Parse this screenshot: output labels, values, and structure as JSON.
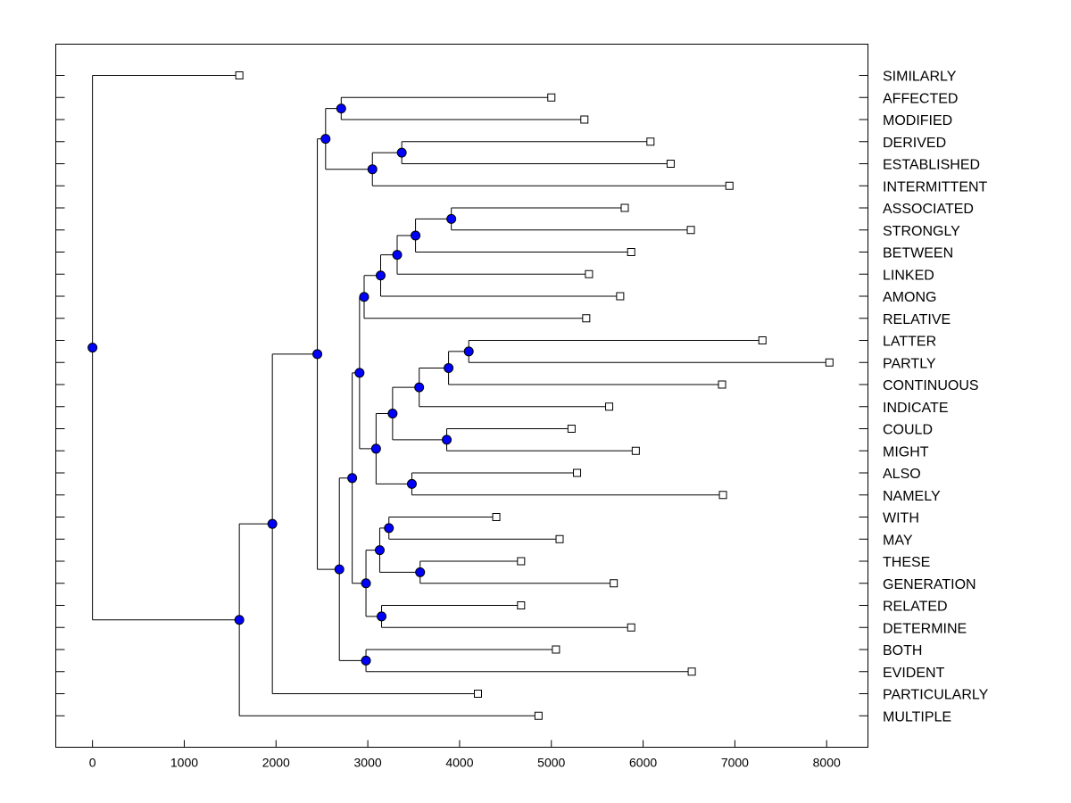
{
  "chart_data": {
    "type": "dendrogram",
    "title": "",
    "xlabel": "",
    "ylabel": "",
    "xlim": [
      -400,
      8450
    ],
    "xticks": [
      0,
      1000,
      2000,
      3000,
      4000,
      5000,
      6000,
      7000,
      8000
    ],
    "xtick_labels": [
      "0",
      "1000",
      "2000",
      "3000",
      "4000",
      "5000",
      "6000",
      "7000",
      "8000"
    ],
    "leaves": [
      {
        "label": "SIMILARLY",
        "value": 1600
      },
      {
        "label": "AFFECTED",
        "value": 5000
      },
      {
        "label": "MODIFIED",
        "value": 5360
      },
      {
        "label": "DERIVED",
        "value": 6080
      },
      {
        "label": "ESTABLISHED",
        "value": 6300
      },
      {
        "label": "INTERMITTENT",
        "value": 6940
      },
      {
        "label": "ASSOCIATED",
        "value": 5800
      },
      {
        "label": "STRONGLY",
        "value": 6520
      },
      {
        "label": "BETWEEN",
        "value": 5870
      },
      {
        "label": "LINKED",
        "value": 5410
      },
      {
        "label": "AMONG",
        "value": 5750
      },
      {
        "label": "RELATIVE",
        "value": 5380
      },
      {
        "label": "LATTER",
        "value": 7300
      },
      {
        "label": "PARTLY",
        "value": 8030
      },
      {
        "label": "CONTINUOUS",
        "value": 6860
      },
      {
        "label": "INDICATE",
        "value": 5630
      },
      {
        "label": "COULD",
        "value": 5220
      },
      {
        "label": "MIGHT",
        "value": 5920
      },
      {
        "label": "ALSO",
        "value": 5280
      },
      {
        "label": "NAMELY",
        "value": 6870
      },
      {
        "label": "WITH",
        "value": 4400
      },
      {
        "label": "MAY",
        "value": 5090
      },
      {
        "label": "THESE",
        "value": 4670
      },
      {
        "label": "GENERATION",
        "value": 5680
      },
      {
        "label": "RELATED",
        "value": 4670
      },
      {
        "label": "DETERMINE",
        "value": 5870
      },
      {
        "label": "BOTH",
        "value": 5050
      },
      {
        "label": "EVIDENT",
        "value": 6530
      },
      {
        "label": "PARTICULARLY",
        "value": 4200
      },
      {
        "label": "MULTIPLE",
        "value": 4860
      }
    ],
    "merges": [
      {
        "id": "n1",
        "value": 2710,
        "children": [
          "AFFECTED",
          "MODIFIED"
        ]
      },
      {
        "id": "n2",
        "value": 3370,
        "children": [
          "DERIVED",
          "ESTABLISHED"
        ]
      },
      {
        "id": "n3",
        "value": 3050,
        "children": [
          "n2",
          "INTERMITTENT"
        ]
      },
      {
        "id": "n4",
        "value": 2540,
        "children": [
          "n1",
          "n3"
        ]
      },
      {
        "id": "n5",
        "value": 3910,
        "children": [
          "ASSOCIATED",
          "STRONGLY"
        ]
      },
      {
        "id": "n6",
        "value": 3520,
        "children": [
          "n5",
          "BETWEEN"
        ]
      },
      {
        "id": "n7",
        "value": 3320,
        "children": [
          "n6",
          "LINKED"
        ]
      },
      {
        "id": "n8",
        "value": 3140,
        "children": [
          "n7",
          "AMONG"
        ]
      },
      {
        "id": "n9",
        "value": 2960,
        "children": [
          "n8",
          "RELATIVE"
        ]
      },
      {
        "id": "n10",
        "value": 4100,
        "children": [
          "LATTER",
          "PARTLY"
        ]
      },
      {
        "id": "n11",
        "value": 3880,
        "children": [
          "n10",
          "CONTINUOUS"
        ]
      },
      {
        "id": "n12",
        "value": 3560,
        "children": [
          "n11",
          "INDICATE"
        ]
      },
      {
        "id": "n13",
        "value": 3860,
        "children": [
          "COULD",
          "MIGHT"
        ]
      },
      {
        "id": "n14",
        "value": 3270,
        "children": [
          "n12",
          "n13"
        ]
      },
      {
        "id": "n15",
        "value": 3480,
        "children": [
          "ALSO",
          "NAMELY"
        ]
      },
      {
        "id": "n16",
        "value": 3090,
        "children": [
          "n14",
          "n15"
        ]
      },
      {
        "id": "n17",
        "value": 2910,
        "children": [
          "n9",
          "n16"
        ]
      },
      {
        "id": "n18",
        "value": 3230,
        "children": [
          "WITH",
          "MAY"
        ]
      },
      {
        "id": "n19",
        "value": 3570,
        "children": [
          "THESE",
          "GENERATION"
        ]
      },
      {
        "id": "n20",
        "value": 3130,
        "children": [
          "n18",
          "n19"
        ]
      },
      {
        "id": "n21",
        "value": 3150,
        "children": [
          "RELATED",
          "DETERMINE"
        ]
      },
      {
        "id": "n22",
        "value": 2980,
        "children": [
          "n20",
          "n21"
        ]
      },
      {
        "id": "n23",
        "value": 2830,
        "children": [
          "n17",
          "n22"
        ]
      },
      {
        "id": "n24",
        "value": 2980,
        "children": [
          "BOTH",
          "EVIDENT"
        ]
      },
      {
        "id": "n25",
        "value": 2690,
        "children": [
          "n23",
          "n24"
        ]
      },
      {
        "id": "n26",
        "value": 2450,
        "children": [
          "n4",
          "n25"
        ]
      },
      {
        "id": "n27",
        "value": 1960,
        "children": [
          "n26",
          "PARTICULARLY"
        ]
      },
      {
        "id": "n28",
        "value": 1600,
        "children": [
          "n27",
          "MULTIPLE"
        ]
      },
      {
        "id": "n29",
        "value": 0,
        "children": [
          "SIMILARLY",
          "n28"
        ]
      }
    ],
    "colors": {
      "node_fill": "#0000ff",
      "leaf_fill": "#ffffff",
      "line": "#000000"
    }
  }
}
